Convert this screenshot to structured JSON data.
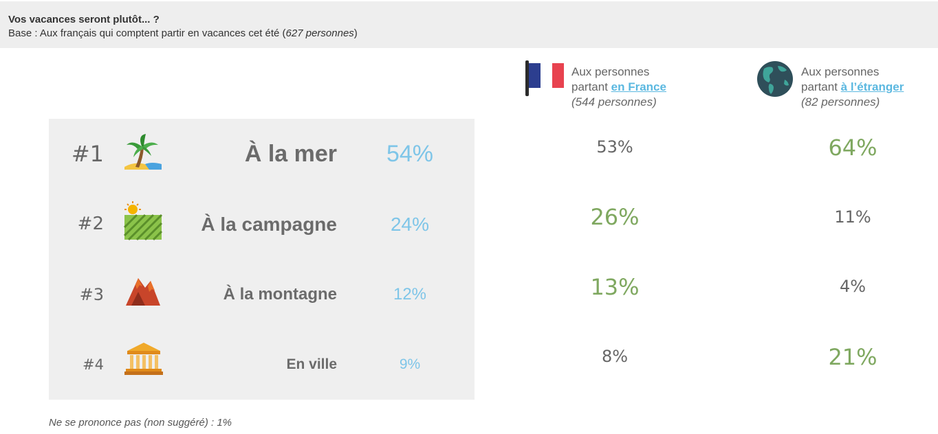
{
  "header": {
    "question": "Vos vacances seront plutôt... ?",
    "base_prefix": "Base : Aux français qui comptent partir en vacances cet été (",
    "base_count": "627 personnes",
    "base_suffix": ")"
  },
  "columns": {
    "france": {
      "line1": "Aux personnes",
      "line2_prefix": "partant ",
      "line2_highlight": "en France",
      "line3": "(544 personnes)",
      "icon": "france-flag-icon"
    },
    "abroad": {
      "line1": "Aux personnes",
      "line2_prefix": "partant ",
      "line2_highlight": "à l’étranger",
      "line3": "(82 personnes)",
      "icon": "globe-icon"
    }
  },
  "rows": [
    {
      "rank": "#1",
      "label": "À la mer",
      "icon": "palm-beach-icon",
      "total": "54%",
      "france": "53%",
      "abroad": "64%"
    },
    {
      "rank": "#2",
      "label": "À la campagne",
      "icon": "countryside-field-icon",
      "total": "24%",
      "france": "26%",
      "abroad": "11%"
    },
    {
      "rank": "#3",
      "label": "À la montagne",
      "icon": "mountain-icon",
      "total": "12%",
      "france": "13%",
      "abroad": "4%"
    },
    {
      "rank": "#4",
      "label": "En ville",
      "icon": "city-building-icon",
      "total": "9%",
      "france": "8%",
      "abroad": "21%"
    }
  ],
  "footnote": "Ne se prononce pas (non suggéré) : 1%",
  "colors": {
    "total_blue": "#7ec5e8",
    "highlight_green": "#7fa860",
    "neutral_grey": "#666666",
    "link_blue": "#5bb8e0"
  },
  "chart_data": {
    "type": "table",
    "title": "Vos vacances seront plutôt... ?",
    "categories": [
      "À la mer",
      "À la campagne",
      "À la montagne",
      "En ville"
    ],
    "series": [
      {
        "name": "Base : Aux français qui comptent partir en vacances cet été (627 personnes)",
        "values": [
          54,
          24,
          12,
          9
        ]
      },
      {
        "name": "Aux personnes partant en France (544 personnes)",
        "values": [
          53,
          26,
          13,
          8
        ]
      },
      {
        "name": "Aux personnes partant à l’étranger (82 personnes)",
        "values": [
          64,
          11,
          4,
          21
        ]
      }
    ],
    "unit": "%",
    "other": {
      "label": "Ne se prononce pas (non suggéré)",
      "value": 1
    }
  }
}
